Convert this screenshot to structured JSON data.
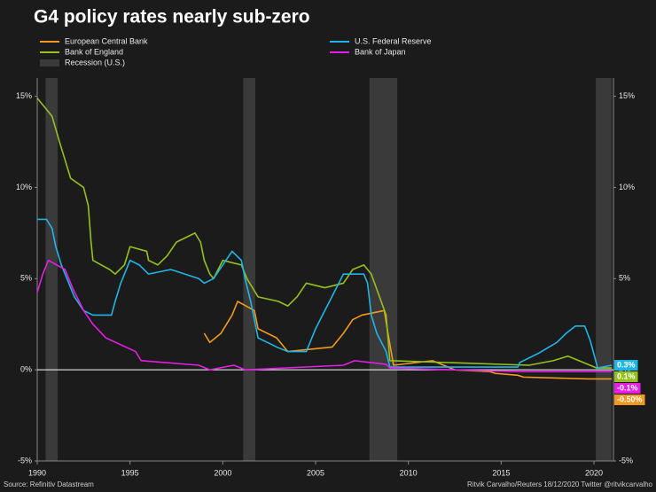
{
  "chart_data": {
    "type": "line",
    "title": "G4 policy rates nearly sub-zero",
    "source": "Source: Refinitiv Datastream",
    "credit": "Ritvik Carvalho/Reuters 18/12/2020 Twitter @ritvikcarvalho",
    "xlim": [
      1990,
      2021.05
    ],
    "xticks": [
      1990,
      1995,
      2000,
      2005,
      2010,
      2015,
      2020
    ],
    "ylim": [
      -5,
      16
    ],
    "yticks": [
      {
        "value": -5,
        "label": "-5%"
      },
      {
        "value": 0,
        "label": "0%"
      },
      {
        "value": 5,
        "label": "5%"
      },
      {
        "value": 10,
        "label": "10%"
      },
      {
        "value": 15,
        "label": "15%"
      }
    ],
    "grid": false,
    "recessions": {
      "name": "Recession (U.S.)",
      "color": "#3a3a3a",
      "periods": [
        [
          1990.45,
          1991.1
        ],
        [
          2001.1,
          2001.75
        ],
        [
          2007.9,
          2009.4
        ],
        [
          2020.1,
          2020.95
        ]
      ]
    },
    "series": [
      {
        "name": "European Central Bank",
        "color": "#f39a1e",
        "x": [
          1999.0,
          1999.3,
          1999.9,
          2000.5,
          2000.8,
          2001.7,
          2001.9,
          2002.9,
          2003.5,
          2005.9,
          2006.5,
          2007.0,
          2007.5,
          2008.7,
          2008.9,
          2009.2,
          2011.3,
          2011.9,
          2012.5,
          2014.4,
          2014.7,
          2015.9,
          2016.2,
          2019.7,
          2020.96
        ],
        "values": [
          2.0,
          1.5,
          2.0,
          3.0,
          3.75,
          3.25,
          2.25,
          1.75,
          1.0,
          1.25,
          2.0,
          2.75,
          3.0,
          3.25,
          2.0,
          0.25,
          0.5,
          0.25,
          0,
          -0.1,
          -0.2,
          -0.3,
          -0.4,
          -0.5,
          -0.5
        ],
        "value_labels": [
          null,
          null,
          null,
          null,
          null,
          null,
          null,
          null,
          null,
          null,
          null,
          null,
          null,
          null,
          null,
          null,
          null,
          null,
          null,
          null,
          null,
          null,
          null,
          null,
          "-0.50%"
        ]
      },
      {
        "name": "Bank of England",
        "color": "#95c11f",
        "x": [
          1990.0,
          1990.8,
          1991.2,
          1991.5,
          1991.8,
          1992.5,
          1992.75,
          1992.9,
          1993.0,
          1993.9,
          1994.2,
          1994.7,
          1995.0,
          1995.9,
          1996.0,
          1996.5,
          1997.0,
          1997.5,
          1998.0,
          1998.5,
          1998.8,
          1999.0,
          1999.3,
          1999.5,
          2000.0,
          2001.0,
          2001.3,
          2001.9,
          2003.0,
          2003.5,
          2004.0,
          2004.5,
          2005.5,
          2006.5,
          2007.0,
          2007.6,
          2008.0,
          2008.8,
          2009.0,
          2016.5,
          2017.8,
          2018.6,
          2020.15,
          2020.96
        ],
        "values": [
          14.9,
          13.9,
          12.5,
          11.5,
          10.5,
          10.0,
          9.0,
          7.0,
          6.0,
          5.5,
          5.25,
          5.75,
          6.75,
          6.5,
          6.0,
          5.75,
          6.25,
          7.0,
          7.25,
          7.5,
          7.0,
          6.0,
          5.25,
          5.0,
          6.0,
          5.75,
          5.0,
          4.0,
          3.75,
          3.5,
          4.0,
          4.75,
          4.5,
          4.75,
          5.5,
          5.75,
          5.25,
          3.0,
          0.5,
          0.25,
          0.5,
          0.75,
          0.1,
          0.1
        ],
        "value_labels": [
          null,
          null,
          null,
          null,
          null,
          null,
          null,
          null,
          null,
          null,
          null,
          null,
          null,
          null,
          null,
          null,
          null,
          null,
          null,
          null,
          null,
          null,
          null,
          null,
          null,
          null,
          null,
          null,
          null,
          null,
          null,
          null,
          null,
          null,
          null,
          null,
          null,
          null,
          null,
          null,
          null,
          null,
          null,
          "0.1%"
        ]
      },
      {
        "name": "U.S. Federal Reserve",
        "color": "#1fb6e6",
        "x": [
          1990.0,
          1990.5,
          1990.8,
          1991.0,
          1991.3,
          1991.8,
          1992.0,
          1992.5,
          1993.0,
          1994.0,
          1994.2,
          1994.5,
          1995.0,
          1995.5,
          1996.0,
          1997.2,
          1998.7,
          1999.0,
          1999.5,
          2000.0,
          2000.5,
          2001.0,
          2001.2,
          2001.5,
          2001.9,
          2002.9,
          2003.5,
          2004.5,
          2005.0,
          2005.5,
          2006.0,
          2006.5,
          2007.6,
          2007.8,
          2008.0,
          2008.3,
          2008.8,
          2009.0,
          2015.9,
          2016.0,
          2017.0,
          2017.5,
          2018.0,
          2018.5,
          2019.0,
          2019.5,
          2019.8,
          2020.2,
          2020.96
        ],
        "values": [
          8.25,
          8.25,
          7.75,
          6.75,
          5.75,
          4.5,
          4.0,
          3.25,
          3.0,
          3.0,
          3.75,
          4.75,
          6.0,
          5.75,
          5.25,
          5.5,
          5.0,
          4.75,
          5.0,
          5.75,
          6.5,
          6.0,
          5.0,
          3.75,
          1.75,
          1.25,
          1.0,
          1.0,
          2.25,
          3.25,
          4.25,
          5.25,
          5.25,
          4.75,
          3.0,
          2.0,
          1.0,
          0.15,
          0.15,
          0.4,
          0.9,
          1.2,
          1.5,
          2.0,
          2.4,
          2.4,
          1.6,
          0.1,
          0.25
        ],
        "value_labels": [
          null,
          null,
          null,
          null,
          null,
          null,
          null,
          null,
          null,
          null,
          null,
          null,
          null,
          null,
          null,
          null,
          null,
          null,
          null,
          null,
          null,
          null,
          null,
          null,
          null,
          null,
          null,
          null,
          null,
          null,
          null,
          null,
          null,
          null,
          null,
          null,
          null,
          null,
          null,
          null,
          null,
          null,
          null,
          null,
          null,
          null,
          null,
          null,
          "0.3%"
        ]
      },
      {
        "name": "Bank of Japan",
        "color": "#e41ee4",
        "x": [
          1990.0,
          1990.3,
          1990.6,
          1991.5,
          1991.9,
          1992.5,
          1993.0,
          1993.7,
          1995.3,
          1995.6,
          1998.7,
          1999.3,
          2000.6,
          2001.2,
          2006.5,
          2007.1,
          2008.8,
          2009.0,
          2016.0,
          2020.96
        ],
        "values": [
          4.25,
          5.25,
          6.0,
          5.5,
          4.5,
          3.25,
          2.5,
          1.75,
          1.0,
          0.5,
          0.25,
          0.0,
          0.25,
          0.0,
          0.25,
          0.5,
          0.3,
          0.1,
          -0.1,
          -0.1
        ],
        "value_labels": [
          null,
          null,
          null,
          null,
          null,
          null,
          null,
          null,
          null,
          null,
          null,
          null,
          null,
          null,
          null,
          null,
          null,
          null,
          null,
          "-0.1%"
        ]
      }
    ]
  }
}
